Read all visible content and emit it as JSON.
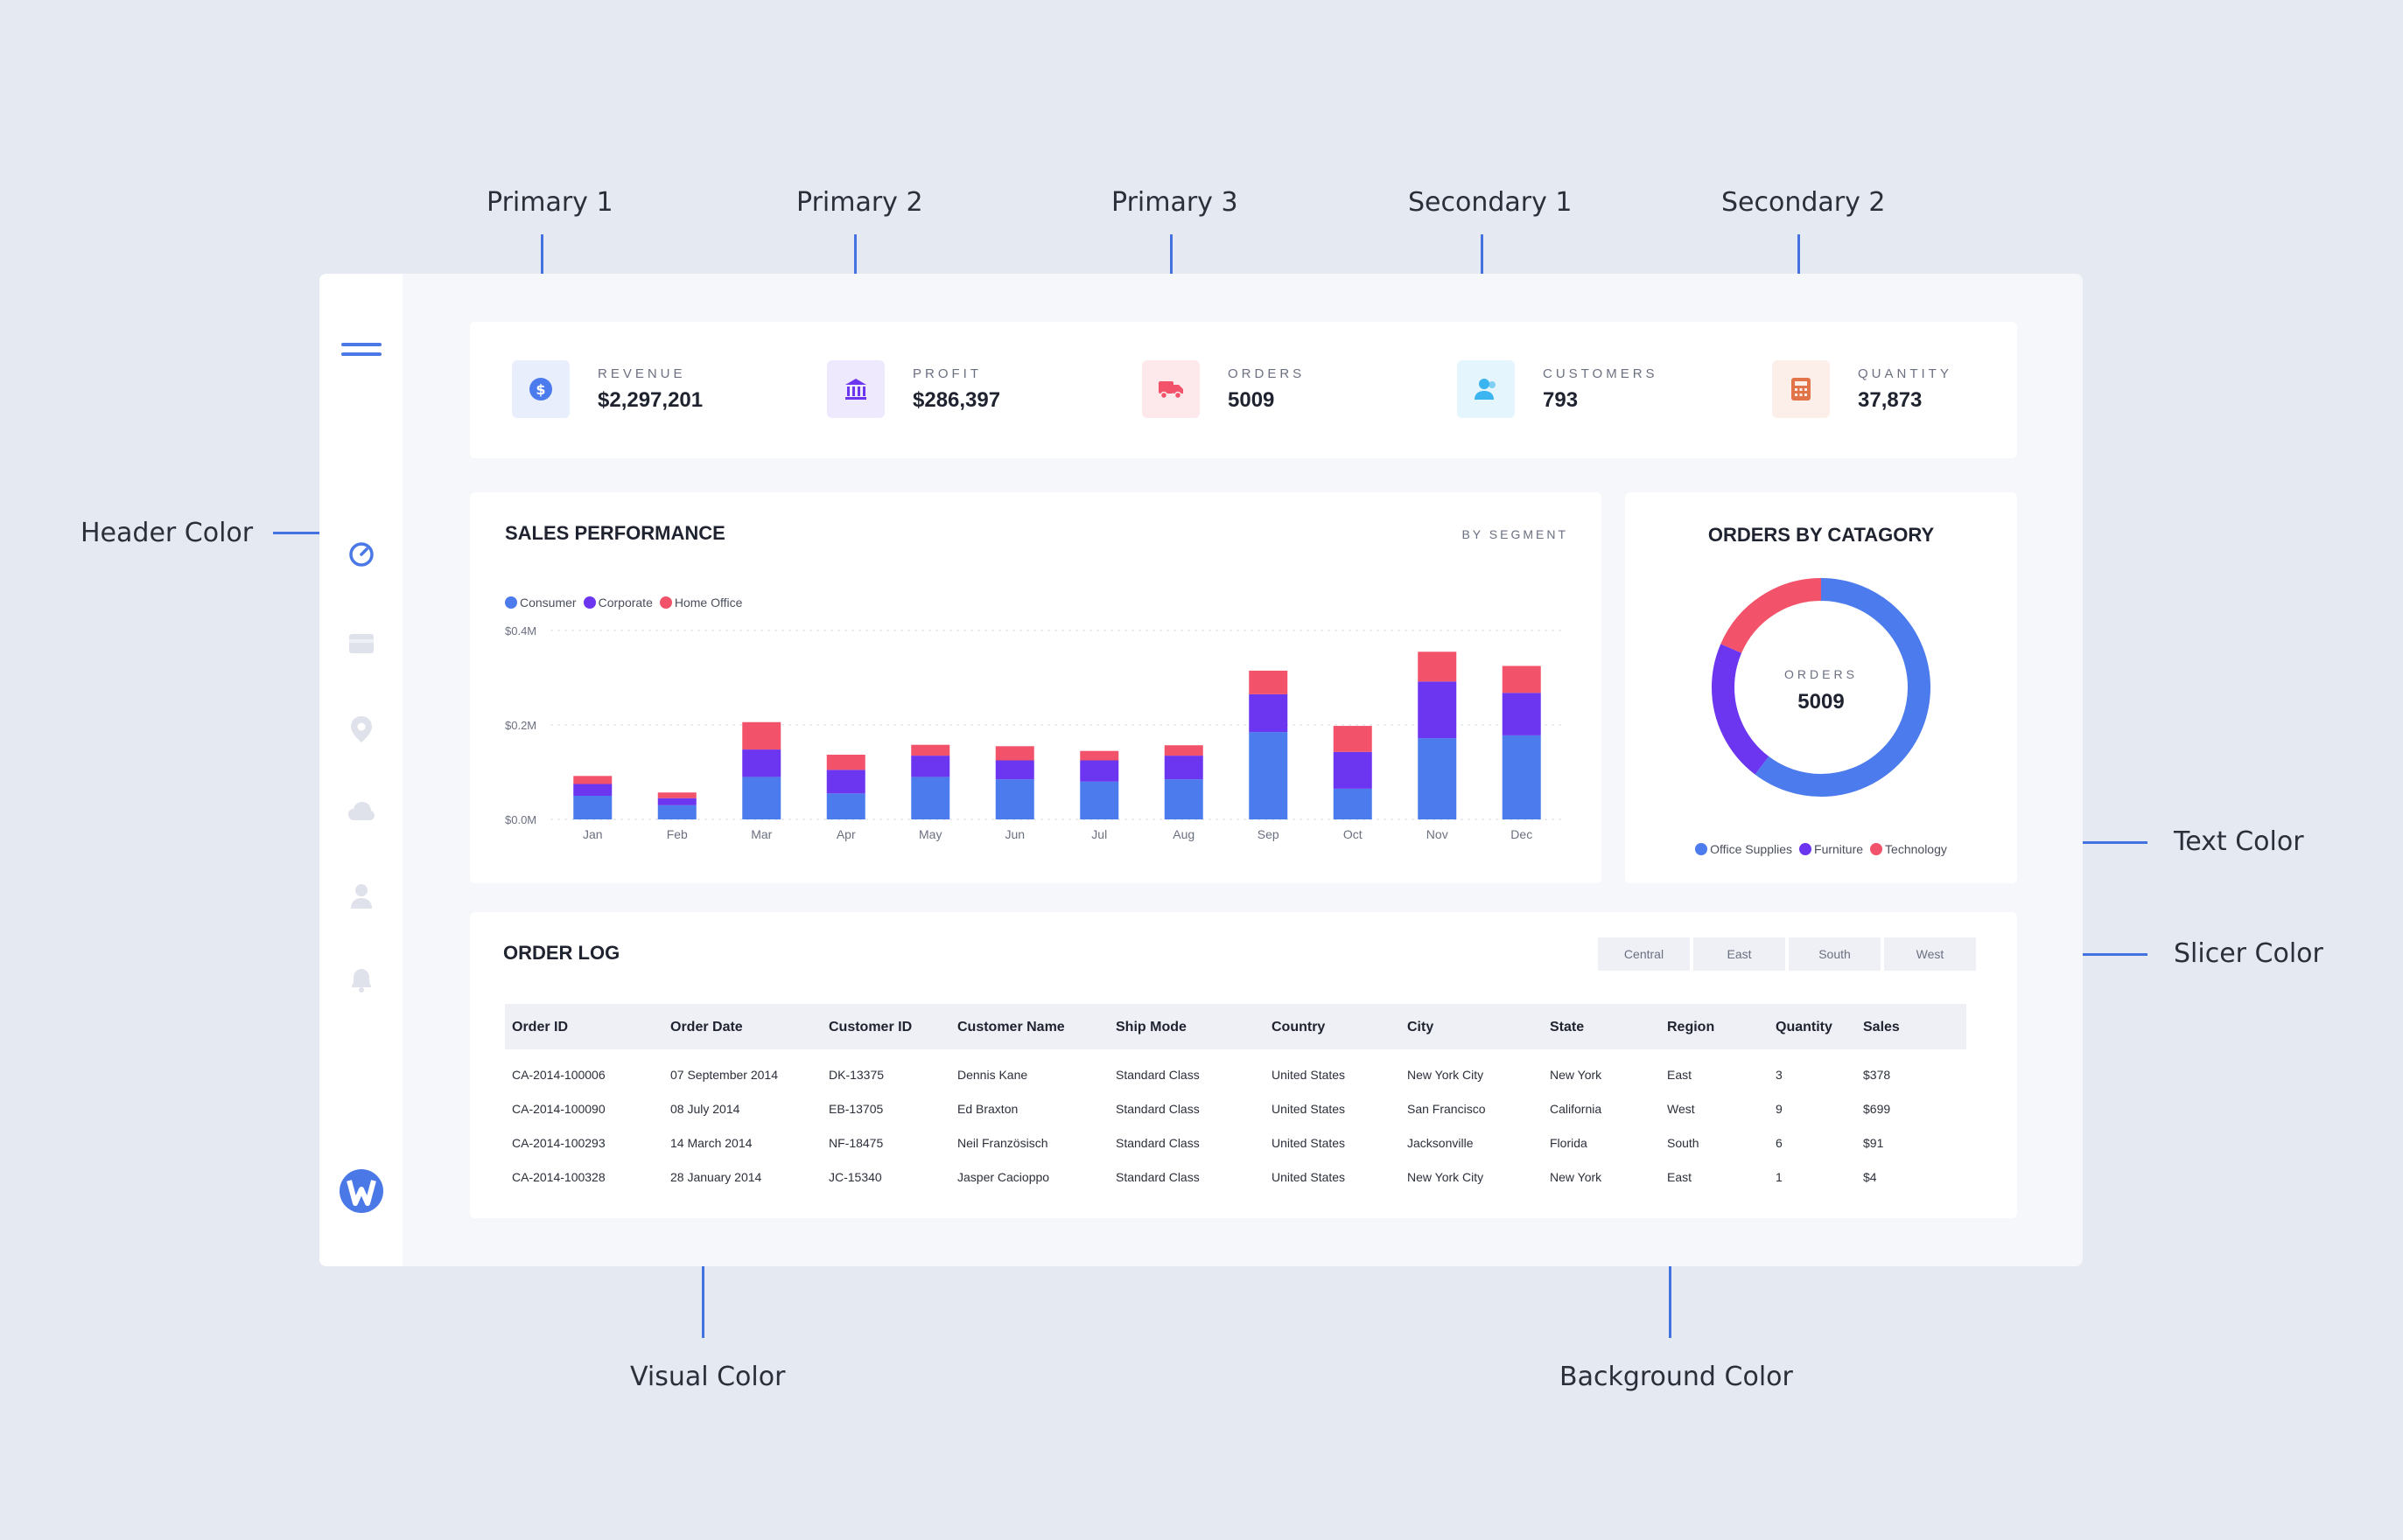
{
  "annotations": {
    "primary1": "Primary 1",
    "primary2": "Primary 2",
    "primary3": "Primary 3",
    "secondary1": "Secondary 1",
    "secondary2": "Secondary 2",
    "header_color": "Header Color",
    "text_color": "Text Color",
    "slicer_color": "Slicer Color",
    "visual_color": "Visual Color",
    "background_color": "Background Color"
  },
  "colors": {
    "primary1": "#4b7bec",
    "primary2": "#6c35f0",
    "primary3": "#f2536a",
    "secondary1": "#3ab5ef",
    "secondary2": "#e2744a",
    "page_bg": "#e4e9f2",
    "frame_bg": "#f6f7fb",
    "visual_bg": "#ffffff",
    "slicer": "#eef0f5"
  },
  "sidebar": {
    "icons": [
      "menu-icon",
      "gauge-icon",
      "card-icon",
      "location-icon",
      "cloud-icon",
      "user-icon",
      "bell-icon",
      "brand-logo-icon"
    ]
  },
  "kpis": [
    {
      "label": "REVENUE",
      "value": "$2,297,201",
      "icon": "dollar-icon"
    },
    {
      "label": "PROFIT",
      "value": "$286,397",
      "icon": "bank-icon"
    },
    {
      "label": "ORDERS",
      "value": "5009",
      "icon": "truck-icon"
    },
    {
      "label": "CUSTOMERS",
      "value": "793",
      "icon": "people-icon"
    },
    {
      "label": "QUANTITY",
      "value": "37,873",
      "icon": "calculator-icon"
    }
  ],
  "sales": {
    "title": "SALES PERFORMANCE",
    "subtitle": "BY SEGMENT"
  },
  "donut": {
    "title": "ORDERS BY CATAGORY",
    "center_label": "ORDERS",
    "center_value": "5009"
  },
  "order_log": {
    "title": "ORDER LOG",
    "slicers": [
      "Central",
      "East",
      "South",
      "West"
    ],
    "columns": [
      "Order ID",
      "Order Date",
      "Customer ID",
      "Customer Name",
      "Ship Mode",
      "Country",
      "City",
      "State",
      "Region",
      "Quantity",
      "Sales"
    ],
    "rows": [
      [
        "CA-2014-100006",
        "07 September 2014",
        "DK-13375",
        "Dennis Kane",
        "Standard Class",
        "United States",
        "New York City",
        "New York",
        "East",
        "3",
        "$378"
      ],
      [
        "CA-2014-100090",
        "08 July 2014",
        "EB-13705",
        "Ed Braxton",
        "Standard Class",
        "United States",
        "San Francisco",
        "California",
        "West",
        "9",
        "$699"
      ],
      [
        "CA-2014-100293",
        "14 March 2014",
        "NF-18475",
        "Neil Französisch",
        "Standard Class",
        "United States",
        "Jacksonville",
        "Florida",
        "South",
        "6",
        "$91"
      ],
      [
        "CA-2014-100328",
        "28 January 2014",
        "JC-15340",
        "Jasper Cacioppo",
        "Standard Class",
        "United States",
        "New York City",
        "New York",
        "East",
        "1",
        "$4"
      ]
    ],
    "scroll_up": "˄",
    "scroll_down": "˅"
  },
  "chart_data": [
    {
      "type": "bar",
      "stacked": true,
      "title": "",
      "categories": [
        "Jan",
        "Feb",
        "Mar",
        "Apr",
        "May",
        "Jun",
        "Jul",
        "Aug",
        "Sep",
        "Oct",
        "Nov",
        "Dec"
      ],
      "series": [
        {
          "name": "Consumer",
          "color": "#4b7bec",
          "values": [
            0.05,
            0.03,
            0.09,
            0.055,
            0.09,
            0.085,
            0.08,
            0.085,
            0.185,
            0.065,
            0.172,
            0.178
          ]
        },
        {
          "name": "Corporate",
          "color": "#6c35f0",
          "values": [
            0.025,
            0.015,
            0.058,
            0.05,
            0.045,
            0.04,
            0.045,
            0.05,
            0.08,
            0.078,
            0.12,
            0.09
          ]
        },
        {
          "name": "Home Office",
          "color": "#f2536a",
          "values": [
            0.017,
            0.012,
            0.058,
            0.032,
            0.023,
            0.03,
            0.02,
            0.022,
            0.05,
            0.055,
            0.063,
            0.057
          ]
        }
      ],
      "y_ticks": [
        "$0.0M",
        "$0.2M",
        "$0.4M"
      ],
      "ylim": [
        0,
        0.4
      ],
      "legend": "top-left",
      "grid": true
    },
    {
      "type": "pie",
      "donut": true,
      "title": "ORDERS BY CATAGORY",
      "categories": [
        "Office Supplies",
        "Furniture",
        "Technology"
      ],
      "values": [
        3020,
        1061,
        928
      ],
      "colors": [
        "#4b7bec",
        "#6c35f0",
        "#f2536a"
      ],
      "legend": "bottom"
    }
  ]
}
